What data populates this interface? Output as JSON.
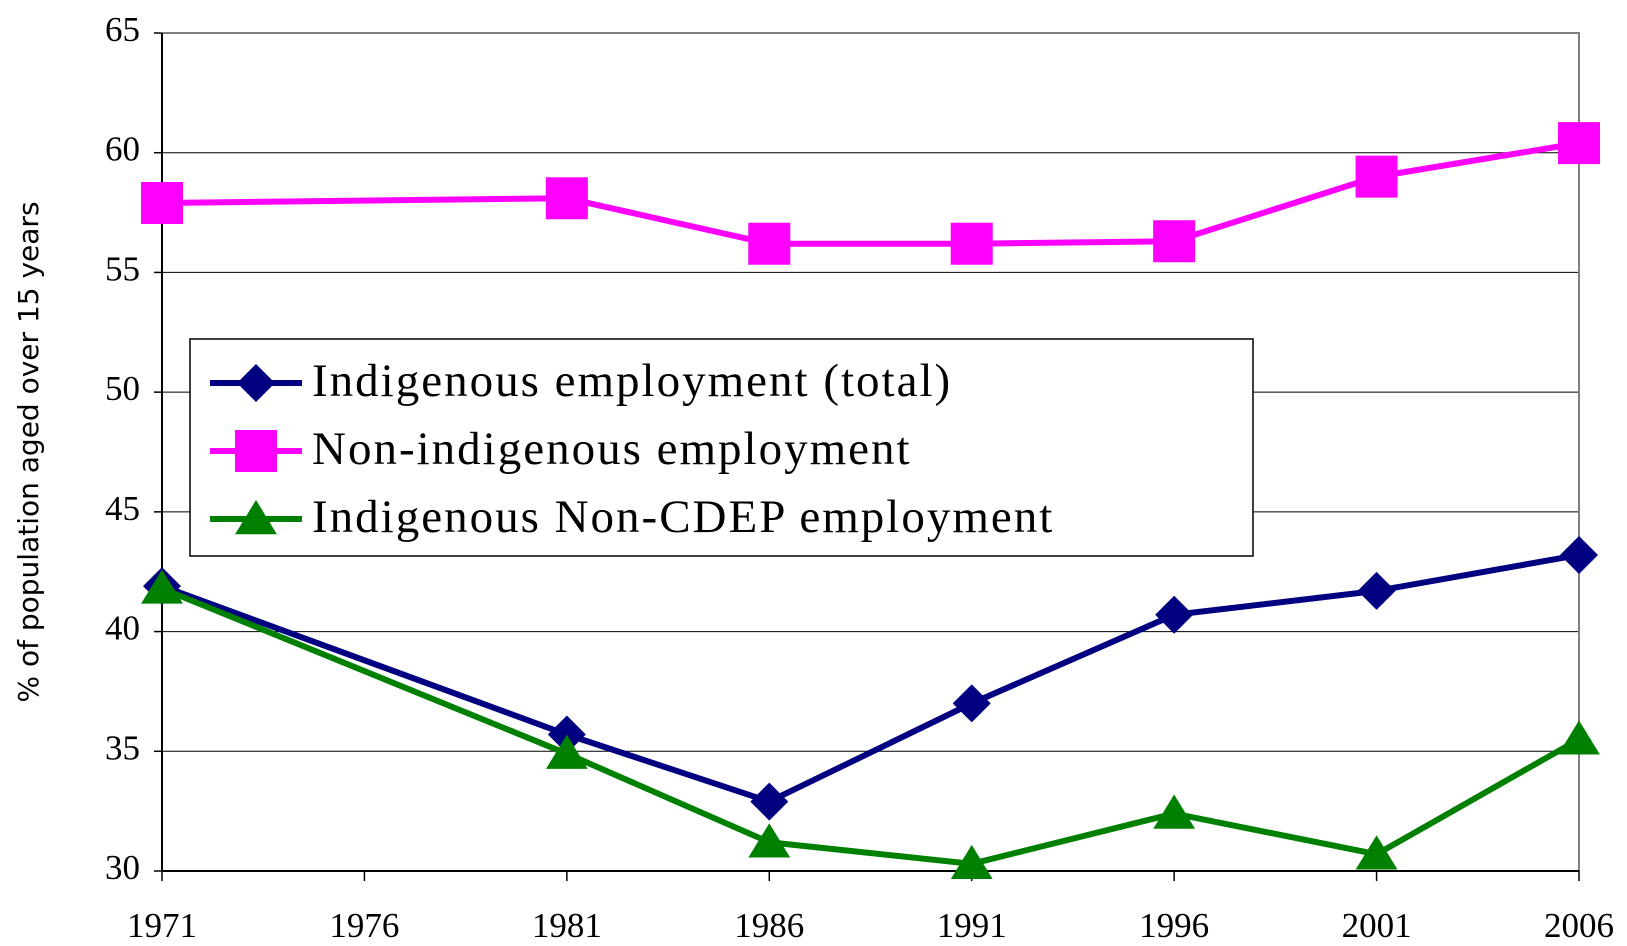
{
  "chart_data": {
    "type": "line",
    "y_label": "% of population aged over 15 years",
    "x": [
      1971,
      1981,
      1986,
      1991,
      1996,
      2001,
      2006
    ],
    "xlim": [
      1971,
      2006
    ],
    "xticks": [
      1971,
      1976,
      1981,
      1986,
      1991,
      1996,
      2001,
      2006
    ],
    "ylim": [
      30,
      65
    ],
    "yticks": [
      30,
      35,
      40,
      45,
      50,
      55,
      60,
      65
    ],
    "grid": true,
    "legend": "middle-left",
    "series": [
      {
        "name": "Indigenous employment (total)",
        "color": "#000080",
        "marker": "diamond",
        "values": [
          41.9,
          35.7,
          32.9,
          37.0,
          40.7,
          41.7,
          43.2
        ]
      },
      {
        "name": "Non-indigenous employment",
        "color": "#ff00ff",
        "marker": "square",
        "values": [
          57.9,
          58.1,
          56.2,
          56.2,
          56.3,
          59.0,
          60.4
        ]
      },
      {
        "name": "Indigenous Non-CDEP employment",
        "color": "#008000",
        "marker": "triangle",
        "values": [
          41.8,
          34.9,
          31.2,
          30.3,
          32.4,
          30.7,
          35.5
        ]
      }
    ]
  }
}
